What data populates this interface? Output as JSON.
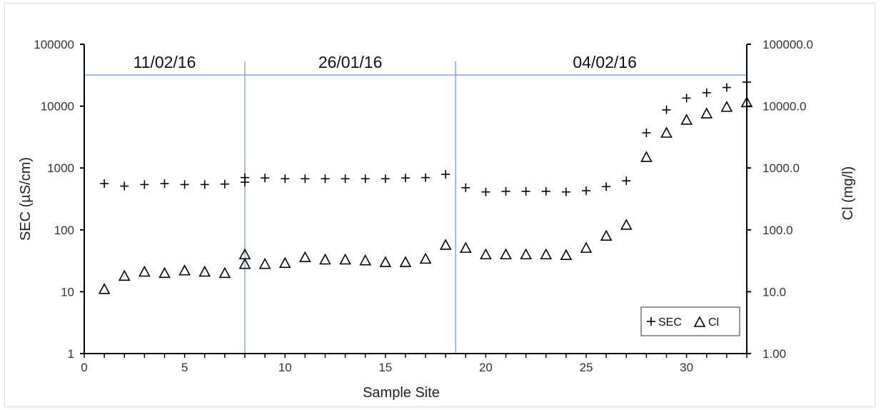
{
  "chart_data": {
    "type": "scatter",
    "title": "",
    "xlabel": "Sample Site",
    "ylabel": "SEC (µS/cm)",
    "y2label": "Cl (mg/l)",
    "xlim": [
      0,
      33
    ],
    "x_ticks": [
      0,
      5,
      10,
      15,
      20,
      25,
      30
    ],
    "ylim": [
      1,
      100000
    ],
    "y_scale": "log",
    "y_ticks": [
      "1",
      "10",
      "100",
      "1000",
      "10000",
      "100000"
    ],
    "y2lim": [
      1,
      100000
    ],
    "y2_scale": "log",
    "y2_ticks": [
      "1.00",
      "10.0",
      "100.0",
      "1000.0",
      "10000.0",
      "100000.0"
    ],
    "grid": false,
    "legend_position": "bottom-right",
    "periods": [
      {
        "label": "11/02/16",
        "x_start": 0,
        "x_end": 8
      },
      {
        "label": "26/01/16",
        "x_start": 8,
        "x_end": 18.5
      },
      {
        "label": "04/02/16",
        "x_start": 18.5,
        "x_end": 33
      }
    ],
    "series": [
      {
        "name": "SEC",
        "marker": "plus",
        "axis": "left",
        "points": [
          [
            1,
            560
          ],
          [
            2,
            510
          ],
          [
            3,
            540
          ],
          [
            4,
            560
          ],
          [
            5,
            540
          ],
          [
            6,
            540
          ],
          [
            7,
            550
          ],
          [
            8,
            590
          ],
          [
            8,
            700
          ],
          [
            9,
            690
          ],
          [
            10,
            670
          ],
          [
            11,
            670
          ],
          [
            12,
            670
          ],
          [
            13,
            670
          ],
          [
            14,
            670
          ],
          [
            15,
            670
          ],
          [
            16,
            690
          ],
          [
            17,
            700
          ],
          [
            18,
            790
          ],
          [
            19,
            480
          ],
          [
            20,
            410
          ],
          [
            21,
            420
          ],
          [
            22,
            420
          ],
          [
            23,
            420
          ],
          [
            24,
            410
          ],
          [
            25,
            430
          ],
          [
            26,
            500
          ],
          [
            27,
            620
          ],
          [
            28,
            3700
          ],
          [
            29,
            8700
          ],
          [
            30,
            13500
          ],
          [
            31,
            16500
          ],
          [
            32,
            20000
          ],
          [
            33,
            24500
          ]
        ]
      },
      {
        "name": "Cl",
        "marker": "triangle",
        "axis": "right",
        "points": [
          [
            1,
            11
          ],
          [
            2,
            18
          ],
          [
            3,
            21
          ],
          [
            4,
            20
          ],
          [
            5,
            22
          ],
          [
            6,
            21
          ],
          [
            7,
            20
          ],
          [
            8,
            28
          ],
          [
            8,
            40
          ],
          [
            9,
            28
          ],
          [
            10,
            29
          ],
          [
            11,
            36
          ],
          [
            12,
            33
          ],
          [
            13,
            33
          ],
          [
            14,
            32
          ],
          [
            15,
            30
          ],
          [
            16,
            30
          ],
          [
            17,
            34
          ],
          [
            18,
            57
          ],
          [
            19,
            51
          ],
          [
            20,
            40
          ],
          [
            21,
            40
          ],
          [
            22,
            40
          ],
          [
            23,
            40
          ],
          [
            24,
            39
          ],
          [
            25,
            51
          ],
          [
            26,
            80
          ],
          [
            27,
            120
          ],
          [
            28,
            1500
          ],
          [
            29,
            3700
          ],
          [
            30,
            6000
          ],
          [
            31,
            7600
          ],
          [
            32,
            9700
          ],
          [
            33,
            11500
          ]
        ]
      }
    ]
  }
}
